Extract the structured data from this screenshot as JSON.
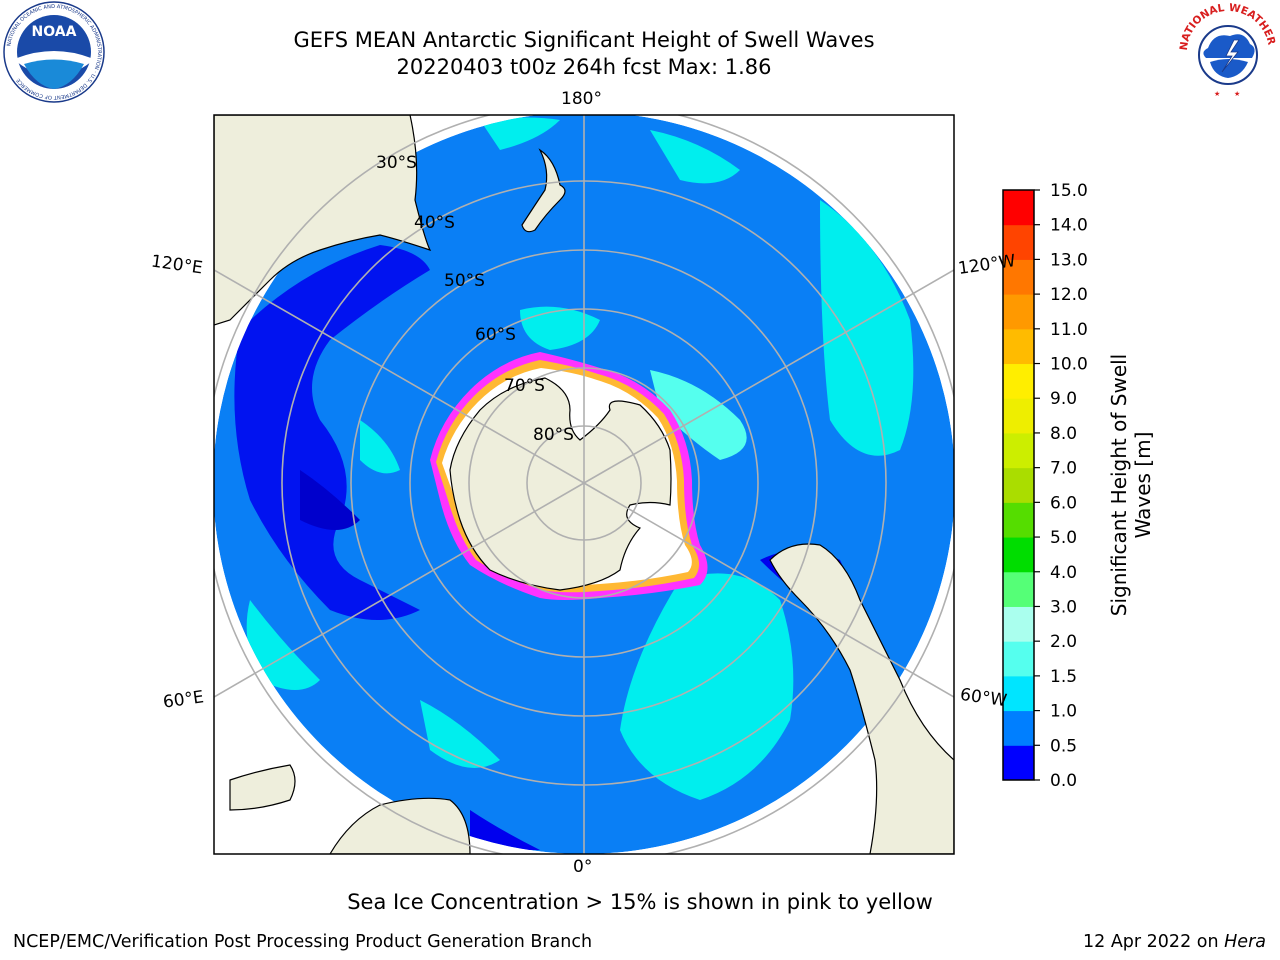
{
  "title": {
    "line1": "GEFS MEAN Antarctic Significant Height of Swell Waves",
    "line2": "20220403 t00z 264h fcst   Max: 1.86"
  },
  "map": {
    "projection": "south polar stereographic",
    "lon_labels": {
      "top": "180°",
      "bottom": "0°",
      "left_upper": "120°E",
      "left_lower": "60°E",
      "right_upper": "120°W",
      "right_lower": "60°W"
    },
    "lat_labels": [
      "30°S",
      "40°S",
      "50°S",
      "60°S",
      "70°S",
      "80°S"
    ],
    "colors": {
      "land": "#eeeedc",
      "ocean_base": "#0a7ff5",
      "swell_low": "#0000ee",
      "swell_mid": "#00eeee",
      "swell_high": "#55ffee",
      "ice_edge_pink": "#ff33ff",
      "ice_edge_orange": "#ffb833",
      "grid": "#b0b0b0"
    }
  },
  "colorbar": {
    "title_line1": "Significant Height of Swell",
    "title_line2": "Waves [m]",
    "ticks": [
      "0.0",
      "0.5",
      "1.0",
      "1.5",
      "2.0",
      "3.0",
      "4.0",
      "5.0",
      "6.0",
      "7.0",
      "8.0",
      "9.0",
      "10.0",
      "11.0",
      "12.0",
      "13.0",
      "14.0",
      "15.0"
    ],
    "colors": [
      "#0000ff",
      "#007fff",
      "#00e5ff",
      "#55ffee",
      "#aaffee",
      "#55ff77",
      "#00dd00",
      "#55dd00",
      "#aadd00",
      "#ccee00",
      "#eeee00",
      "#ffee00",
      "#ffbb00",
      "#ff9900",
      "#ff7700",
      "#ff4400",
      "#ff0000"
    ]
  },
  "note": "Sea Ice Concentration > 15% is shown in pink to yellow",
  "footer": {
    "credit": "NCEP/EMC/Verification Post Processing Product Generation Branch",
    "date_prefix": "12 Apr 2022 on ",
    "date_machine": "Hera"
  },
  "logos": {
    "noaa": {
      "text": "NOAA",
      "ring_text": "NATIONAL OCEANIC AND ATMOSPHERIC ADMINISTRATION · U.S. DEPARTMENT OF COMMERCE",
      "icon": "noaa-logo"
    },
    "nws": {
      "ring_text": "NATIONAL WEATHER SERVICE",
      "icon": "nws-logo"
    }
  }
}
